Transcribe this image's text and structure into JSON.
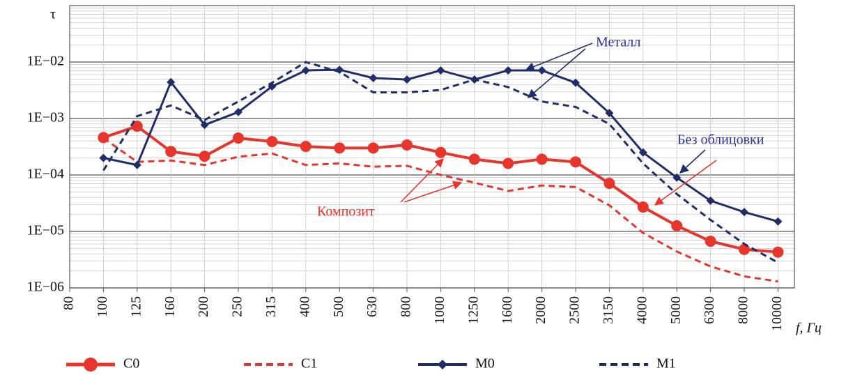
{
  "chart_data": {
    "type": "line",
    "y_label": "τ",
    "x_label": "f, Гц",
    "log_y": true,
    "grid": true,
    "minor_grid": true,
    "legend": "bottom",
    "categories": [
      "80",
      "100",
      "125",
      "160",
      "200",
      "250",
      "315",
      "400",
      "500",
      "630",
      "800",
      "1000",
      "1250",
      "1600",
      "2000",
      "2500",
      "3150",
      "4000",
      "5000",
      "6300",
      "8000",
      "10000"
    ],
    "ylim": [
      1e-06,
      0.1
    ],
    "yticks": [
      {
        "value": 1e-06,
        "label": "1E−06"
      },
      {
        "value": 1e-05,
        "label": "1E−05"
      },
      {
        "value": 0.0001,
        "label": "1E−04"
      },
      {
        "value": 0.001,
        "label": "1E−03"
      },
      {
        "value": 0.01,
        "label": "1E−02"
      }
    ],
    "series": [
      {
        "name": "C0",
        "color": "#e8352b",
        "marker": "circle",
        "dashed": false,
        "values": [
          null,
          0.00046,
          0.00073,
          0.00026,
          0.000215,
          0.00045,
          0.00039,
          0.00032,
          0.0003,
          0.0003,
          0.00034,
          0.00025,
          0.00019,
          0.00016,
          0.00019,
          0.00017,
          7.1e-05,
          2.7e-05,
          1.26e-05,
          6.7e-06,
          4.8e-06,
          4.3e-06
        ]
      },
      {
        "name": "C1",
        "color": "#e8352b",
        "marker": "none",
        "dashed": true,
        "values": [
          null,
          0.00045,
          0.00017,
          0.00018,
          0.00015,
          0.00021,
          0.00024,
          0.00015,
          0.00016,
          0.00014,
          0.000145,
          0.0001,
          7.3e-05,
          5.2e-05,
          6.5e-05,
          6.1e-05,
          2.9e-05,
          9.4e-06,
          4.4e-06,
          2.4e-06,
          1.6e-06,
          1.3e-06
        ]
      },
      {
        "name": "M0",
        "color": "#1f2e6b",
        "marker": "diamond",
        "dashed": false,
        "values": [
          null,
          0.0002,
          0.00015,
          0.0044,
          0.00077,
          0.0013,
          0.0037,
          0.0071,
          0.0073,
          0.0052,
          0.0049,
          0.0071,
          0.0049,
          0.0071,
          0.0071,
          0.0043,
          0.00125,
          0.00025,
          9e-05,
          3.5e-05,
          2.2e-05,
          1.5e-05
        ]
      },
      {
        "name": "M1",
        "color": "#1f2e6b",
        "marker": "none",
        "dashed": true,
        "values": [
          null,
          0.00012,
          0.0011,
          0.0017,
          0.00094,
          0.002,
          0.0043,
          0.01,
          0.0067,
          0.0029,
          0.0029,
          0.0032,
          0.0049,
          0.0036,
          0.002,
          0.0016,
          0.0008,
          0.00016,
          4.6e-05,
          1.6e-05,
          6e-06,
          2.8e-06
        ]
      }
    ],
    "annotations": [
      "Металл",
      "Без облицовки",
      "Композит"
    ]
  }
}
